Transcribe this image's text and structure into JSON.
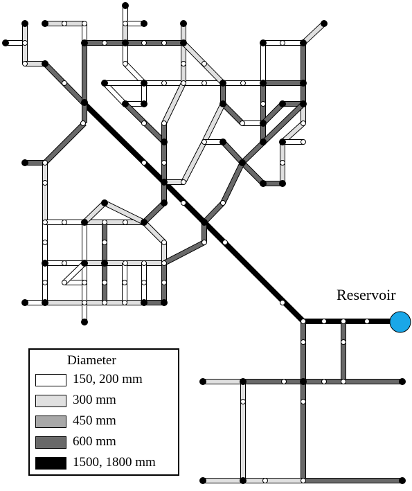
{
  "diagram": {
    "reservoir_label": "Reservoir",
    "reservoir_color": "#1aa7e8"
  },
  "legend": {
    "title": "Diameter",
    "entries": [
      {
        "label": "150, 200 mm",
        "color": "#ffffff"
      },
      {
        "label": "300 mm",
        "color": "#e0e0e0"
      },
      {
        "label": "450 mm",
        "color": "#a8a8a8"
      },
      {
        "label": "600 mm",
        "color": "#696969"
      },
      {
        "label": "1500, 1800 mm",
        "color": "#000000"
      }
    ]
  }
}
